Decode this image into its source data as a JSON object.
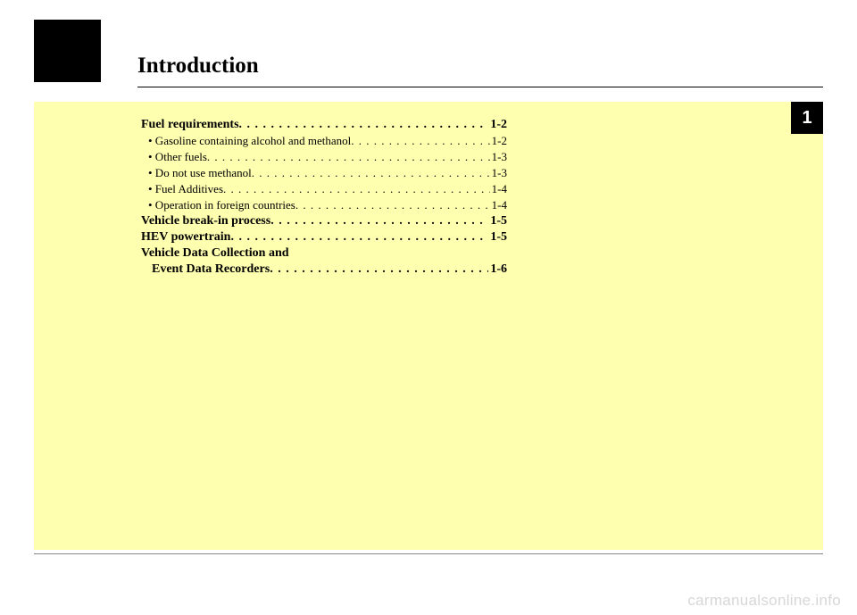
{
  "colors": {
    "page_bg": "#ffffff",
    "panel_bg": "#ffffb0",
    "tab_bg": "#000000",
    "text": "#000000",
    "badge_text": "#ffffff",
    "watermark": "#d7d7d7",
    "rule": "#888888"
  },
  "title": "Introduction",
  "chapter_number": "1",
  "toc": [
    {
      "type": "main",
      "label": "Fuel requirements",
      "page": "1-2"
    },
    {
      "type": "sub",
      "label": "• Gasoline containing alcohol and methanol",
      "page": "1-2"
    },
    {
      "type": "sub",
      "label": "• Other fuels",
      "page": "1-3"
    },
    {
      "type": "sub",
      "label": "• Do not use methanol",
      "page": "1-3"
    },
    {
      "type": "sub",
      "label": "• Fuel Additives",
      "page": "1-4"
    },
    {
      "type": "sub",
      "label": "• Operation in foreign countries",
      "page": "1-4"
    },
    {
      "type": "main",
      "label": "Vehicle break-in process",
      "page": "1-5"
    },
    {
      "type": "main",
      "label": "HEV powertrain",
      "page": "1-5"
    },
    {
      "type": "main",
      "label": "Vehicle Data Collection and",
      "page": ""
    },
    {
      "type": "main",
      "label": "Event Data Recorders",
      "page": "1-6",
      "continuation": true
    }
  ],
  "watermark": "carmanualsonline.info"
}
